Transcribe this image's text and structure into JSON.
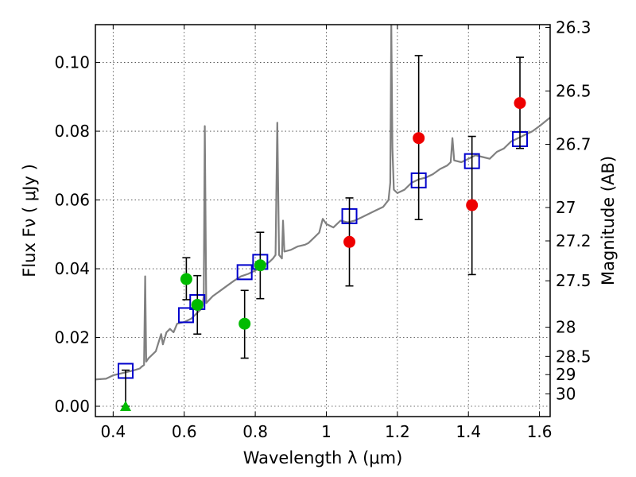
{
  "chart_data": {
    "type": "scatter",
    "xlabel": "Wavelength  λ (μm)",
    "ylabel": "Flux  Fν  ( μJy )",
    "ylabel_right": "Magnitude (AB)",
    "xlim": [
      0.35,
      1.63
    ],
    "ylim": [
      -0.003,
      0.111
    ],
    "grid": true,
    "x_ticks": [
      0.4,
      0.6,
      0.8,
      1.0,
      1.2,
      1.4,
      1.6
    ],
    "x_tick_labels": [
      "0.4",
      "0.6",
      "0.8",
      "1",
      "1.2",
      "1.4",
      "1.6"
    ],
    "y_ticks": [
      0.0,
      0.02,
      0.04,
      0.06,
      0.08,
      0.1
    ],
    "y_tick_labels": [
      "0.00",
      "0.02",
      "0.04",
      "0.06",
      "0.08",
      "0.10"
    ],
    "magnitude_ticks": [
      {
        "label": "26.3",
        "flux": 0.1102
      },
      {
        "label": "26.5",
        "flux": 0.0917
      },
      {
        "label": "26.7",
        "flux": 0.0762
      },
      {
        "label": "27",
        "flux": 0.0578
      },
      {
        "label": "27.2",
        "flux": 0.0481
      },
      {
        "label": "27.5",
        "flux": 0.0365
      },
      {
        "label": "28",
        "flux": 0.023
      },
      {
        "label": "28.5",
        "flux": 0.0145
      },
      {
        "label": "29",
        "flux": 0.0092
      },
      {
        "label": "30",
        "flux": 0.0036
      }
    ],
    "series": [
      {
        "kind": "spectrum",
        "color": "#808080",
        "points": [
          [
            0.35,
            0.0078
          ],
          [
            0.38,
            0.008
          ],
          [
            0.4,
            0.009
          ],
          [
            0.42,
            0.0095
          ],
          [
            0.44,
            0.01
          ],
          [
            0.46,
            0.0105
          ],
          [
            0.475,
            0.011
          ],
          [
            0.48,
            0.0115
          ],
          [
            0.487,
            0.012
          ],
          [
            0.49,
            0.0378
          ],
          [
            0.493,
            0.013
          ],
          [
            0.5,
            0.014
          ],
          [
            0.52,
            0.016
          ],
          [
            0.535,
            0.021
          ],
          [
            0.54,
            0.018
          ],
          [
            0.55,
            0.0215
          ],
          [
            0.56,
            0.0225
          ],
          [
            0.57,
            0.0215
          ],
          [
            0.58,
            0.024
          ],
          [
            0.6,
            0.0245
          ],
          [
            0.62,
            0.0255
          ],
          [
            0.63,
            0.0265
          ],
          [
            0.64,
            0.0275
          ],
          [
            0.65,
            0.0285
          ],
          [
            0.655,
            0.032
          ],
          [
            0.658,
            0.0815
          ],
          [
            0.662,
            0.03
          ],
          [
            0.68,
            0.032
          ],
          [
            0.7,
            0.0335
          ],
          [
            0.72,
            0.035
          ],
          [
            0.74,
            0.0365
          ],
          [
            0.76,
            0.0378
          ],
          [
            0.78,
            0.0385
          ],
          [
            0.8,
            0.0395
          ],
          [
            0.82,
            0.0408
          ],
          [
            0.84,
            0.042
          ],
          [
            0.85,
            0.043
          ],
          [
            0.857,
            0.044
          ],
          [
            0.862,
            0.0825
          ],
          [
            0.867,
            0.044
          ],
          [
            0.875,
            0.043
          ],
          [
            0.878,
            0.054
          ],
          [
            0.882,
            0.045
          ],
          [
            0.9,
            0.0455
          ],
          [
            0.92,
            0.0465
          ],
          [
            0.94,
            0.047
          ],
          [
            0.95,
            0.0475
          ],
          [
            0.96,
            0.0485
          ],
          [
            0.98,
            0.0505
          ],
          [
            0.99,
            0.0545
          ],
          [
            1.0,
            0.053
          ],
          [
            1.02,
            0.052
          ],
          [
            1.04,
            0.054
          ],
          [
            1.06,
            0.0535
          ],
          [
            1.08,
            0.054
          ],
          [
            1.1,
            0.055
          ],
          [
            1.12,
            0.056
          ],
          [
            1.14,
            0.057
          ],
          [
            1.16,
            0.058
          ],
          [
            1.175,
            0.06
          ],
          [
            1.18,
            0.065
          ],
          [
            1.183,
            0.111
          ],
          [
            1.186,
            0.075
          ],
          [
            1.19,
            0.063
          ],
          [
            1.2,
            0.062
          ],
          [
            1.22,
            0.063
          ],
          [
            1.24,
            0.065
          ],
          [
            1.26,
            0.066
          ],
          [
            1.28,
            0.0665
          ],
          [
            1.3,
            0.0675
          ],
          [
            1.32,
            0.069
          ],
          [
            1.34,
            0.07
          ],
          [
            1.35,
            0.071
          ],
          [
            1.355,
            0.078
          ],
          [
            1.36,
            0.0715
          ],
          [
            1.38,
            0.071
          ],
          [
            1.4,
            0.072
          ],
          [
            1.42,
            0.073
          ],
          [
            1.44,
            0.0725
          ],
          [
            1.46,
            0.072
          ],
          [
            1.48,
            0.074
          ],
          [
            1.5,
            0.075
          ],
          [
            1.52,
            0.077
          ],
          [
            1.54,
            0.078
          ],
          [
            1.56,
            0.079
          ],
          [
            1.58,
            0.08
          ],
          [
            1.6,
            0.0815
          ],
          [
            1.63,
            0.084
          ]
        ]
      },
      {
        "kind": "model_photometry",
        "marker": "open-square",
        "color": "#0000cc",
        "x": [
          0.435,
          0.605,
          0.637,
          0.77,
          0.814,
          1.065,
          1.26,
          1.41,
          1.545
        ],
        "y": [
          0.0103,
          0.0265,
          0.0303,
          0.039,
          0.042,
          0.0553,
          0.0657,
          0.0713,
          0.0777
        ]
      },
      {
        "kind": "observed",
        "marker": "filled-circle",
        "color": "#00bb00",
        "x": [
          0.606,
          0.637,
          0.77,
          0.814
        ],
        "y": [
          0.037,
          0.0295,
          0.024,
          0.041
        ],
        "err_low": [
          0.031,
          0.021,
          0.014,
          0.0313
        ],
        "err_high": [
          0.0432,
          0.038,
          0.0337,
          0.0506
        ]
      },
      {
        "kind": "observed",
        "marker": "filled-circle",
        "color": "#ee0000",
        "x": [
          1.065,
          1.26,
          1.41,
          1.545
        ],
        "y": [
          0.0478,
          0.078,
          0.0585,
          0.0882
        ],
        "err_low": [
          0.035,
          0.0543,
          0.0383,
          0.075
        ],
        "err_high": [
          0.0606,
          0.102,
          0.0785,
          0.1015
        ]
      },
      {
        "kind": "upper_limit",
        "marker": "triangle-up",
        "color": "#00bb00",
        "x": [
          0.435
        ],
        "y": [
          0.0
        ],
        "err_low": [
          0.0
        ],
        "err_high": [
          0.0105
        ]
      }
    ]
  }
}
